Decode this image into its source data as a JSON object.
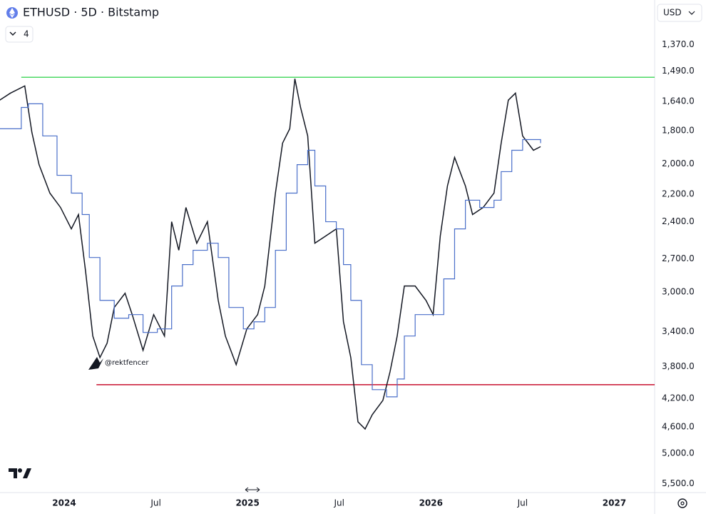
{
  "chart_data": {
    "type": "line",
    "title": "ETHUSD · 5D · Bitstamp",
    "interval_count": "4",
    "currency": "USD",
    "annotation": "@rektfencer",
    "log_scale": true,
    "y_inverted": true,
    "grid": false,
    "xlim": [
      2023.65,
      2027.22
    ],
    "xticks": [
      2024,
      {
        "value": 2024.5,
        "label": "Jul"
      },
      2025,
      {
        "value": 2025.5,
        "label": "Jul"
      },
      2026,
      {
        "value": 2026.5,
        "label": "Jul"
      },
      2027
    ],
    "ylim": [
      1190,
      5660
    ],
    "yticks": [
      {
        "value": 1370,
        "label": "1,370.0"
      },
      {
        "value": 1490,
        "label": "1,490.0"
      },
      {
        "value": 1640,
        "label": "1,640.0"
      },
      {
        "value": 1800,
        "label": "1,800.0"
      },
      {
        "value": 2000,
        "label": "2,000.0"
      },
      {
        "value": 2200,
        "label": "2,200.0"
      },
      {
        "value": 2400,
        "label": "2,400.0"
      },
      {
        "value": 2700,
        "label": "2,700.0"
      },
      {
        "value": 3000,
        "label": "3,000.0"
      },
      {
        "value": 3400,
        "label": "3,400.0"
      },
      {
        "value": 3800,
        "label": "3,800.0"
      },
      {
        "value": 4200,
        "label": "4,200.0"
      },
      {
        "value": 4600,
        "label": "4,600.0"
      },
      {
        "value": 5000,
        "label": "5,000.0"
      },
      {
        "value": 5500,
        "label": "5,500.0"
      }
    ],
    "series": [
      {
        "color": "#131722",
        "step": false,
        "x": [
          2023.648,
          2023.707,
          2023.785,
          2023.824,
          2023.863,
          2023.922,
          2023.98,
          2024.039,
          2024.078,
          2024.117,
          2024.156,
          2024.195,
          2024.234,
          2024.273,
          2024.332,
          2024.371,
          2024.43,
          2024.488,
          2024.547,
          2024.586,
          2024.625,
          2024.664,
          2024.723,
          2024.781,
          2024.84,
          2024.879,
          2024.938,
          2024.996,
          2025.055,
          2025.094,
          2025.152,
          2025.191,
          2025.23,
          2025.258,
          2025.289,
          2025.328,
          2025.367,
          2025.426,
          2025.484,
          2025.523,
          2025.563,
          2025.602,
          2025.641,
          2025.68,
          2025.738,
          2025.777,
          2025.816,
          2025.855,
          2025.914,
          2025.973,
          2026.012,
          2026.051,
          2026.09,
          2026.129,
          2026.188,
          2026.227,
          2026.285,
          2026.344,
          2026.383,
          2026.422,
          2026.461,
          2026.5,
          2026.559,
          2026.598
        ],
        "values": [
          1634,
          1598,
          1562,
          1810,
          2004,
          2193,
          2295,
          2456,
          2347,
          2813,
          3448,
          3691,
          3527,
          3150,
          3011,
          3222,
          3608,
          3222,
          3448,
          2401,
          2628,
          2295,
          2570,
          2401,
          3080,
          3448,
          3775,
          3371,
          3222,
          2943,
          2193,
          1872,
          1789,
          1527,
          1672,
          1830,
          2570,
          2512,
          2456,
          3296,
          3691,
          4524,
          4628,
          4423,
          4227,
          3861,
          3448,
          2943,
          2943,
          3080,
          3222,
          2512,
          2144,
          1959,
          2144,
          2347,
          2295,
          2193,
          1872,
          1634,
          1598,
          1830,
          1915,
          1893
        ]
      },
      {
        "color": "#4a6fc9",
        "step": true,
        "x": [
          2023.648,
          2023.766,
          2023.805,
          2023.883,
          2023.961,
          2024.039,
          2024.098,
          2024.137,
          2024.195,
          2024.273,
          2024.352,
          2024.43,
          2024.508,
          2024.586,
          2024.645,
          2024.703,
          2024.781,
          2024.84,
          2024.898,
          2024.977,
          2025.035,
          2025.094,
          2025.152,
          2025.211,
          2025.27,
          2025.328,
          2025.367,
          2025.426,
          2025.484,
          2025.523,
          2025.563,
          2025.621,
          2025.68,
          2025.758,
          2025.816,
          2025.855,
          2025.914,
          2025.992,
          2026.07,
          2026.129,
          2026.188,
          2026.266,
          2026.344,
          2026.383,
          2026.441,
          2026.5,
          2026.598
        ],
        "values": [
          1789,
          1672,
          1653,
          1830,
          2073,
          2193,
          2347,
          2689,
          3080,
          3259,
          3222,
          3409,
          3371,
          2943,
          2750,
          2628,
          2570,
          2689,
          3150,
          3371,
          3296,
          3150,
          2628,
          2193,
          2004,
          1915,
          2144,
          2401,
          2456,
          2750,
          3080,
          3775,
          4086,
          4180,
          3950,
          3448,
          3222,
          3222,
          2877,
          2456,
          2243,
          2295,
          2243,
          2049,
          1915,
          1851,
          1872
        ]
      }
    ],
    "hlines": [
      {
        "value": 1520,
        "color": "#4cd964",
        "x_start": 2023.766
      },
      {
        "value": 4022,
        "color": "#c8102e",
        "x_start": 2024.176
      }
    ]
  }
}
